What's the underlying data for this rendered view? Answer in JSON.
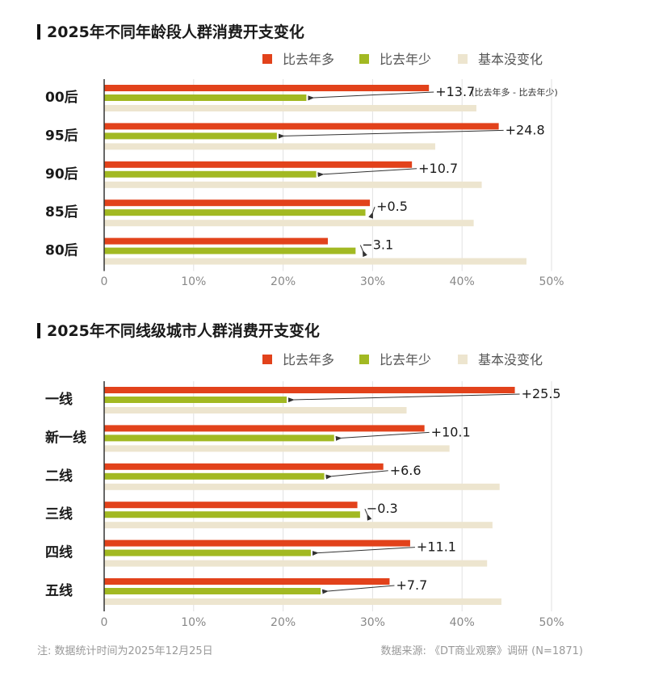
{
  "colors": {
    "more": "#E2421B",
    "less": "#A2B922",
    "same": "#EDE5CF",
    "grid": "#E2E2E2",
    "axis": "#333333"
  },
  "chart_data": [
    {
      "type": "bar",
      "orientation": "horizontal",
      "title": "2025年不同年龄段人群消费开支变化",
      "legend": [
        "比去年多",
        "比去年少",
        "基本没变化"
      ],
      "legend_position": "top-right",
      "categories": [
        "00后",
        "95后",
        "90后",
        "85后",
        "80后"
      ],
      "series": [
        {
          "name": "比去年多",
          "values": [
            36.3,
            44.1,
            34.4,
            29.7,
            25.0
          ]
        },
        {
          "name": "比去年少",
          "values": [
            22.6,
            19.3,
            23.7,
            29.2,
            28.1
          ]
        },
        {
          "name": "基本没变化",
          "values": [
            41.6,
            37.0,
            42.2,
            41.3,
            47.2
          ]
        }
      ],
      "annotations": [
        "+13.7",
        "+24.8",
        "+10.7",
        "+0.5",
        "−3.1"
      ],
      "annotation_note": "(比去年多 - 比去年少)",
      "xticks": [
        "0",
        "10%",
        "20%",
        "30%",
        "40%",
        "50%"
      ],
      "xlim": [
        0,
        50
      ],
      "grid": true
    },
    {
      "type": "bar",
      "orientation": "horizontal",
      "title": "2025年不同线级城市人群消费开支变化",
      "legend": [
        "比去年多",
        "比去年少",
        "基本没变化"
      ],
      "legend_position": "top-right",
      "categories": [
        "一线",
        "新一线",
        "二线",
        "三线",
        "四线",
        "五线"
      ],
      "series": [
        {
          "name": "比去年多",
          "values": [
            45.9,
            35.8,
            31.2,
            28.3,
            34.2,
            31.9
          ]
        },
        {
          "name": "比去年少",
          "values": [
            20.4,
            25.7,
            24.6,
            28.6,
            23.1,
            24.2
          ]
        },
        {
          "name": "基本没变化",
          "values": [
            33.8,
            38.6,
            44.2,
            43.4,
            42.8,
            44.4
          ]
        }
      ],
      "annotations": [
        "+25.5",
        "+10.1",
        "+6.6",
        "−0.3",
        "+11.1",
        "+7.7"
      ],
      "xticks": [
        "0",
        "10%",
        "20%",
        "30%",
        "40%",
        "50%"
      ],
      "xlim": [
        0,
        50
      ],
      "grid": true
    }
  ],
  "footer": {
    "note": "注: 数据统计时间为2025年12月25日",
    "source": "数据来源: 《DT商业观察》调研 (N=1871)"
  }
}
